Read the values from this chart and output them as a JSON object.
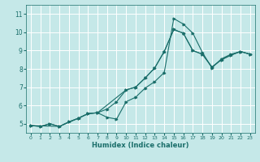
{
  "xlabel": "Humidex (Indice chaleur)",
  "background_color": "#c5e8e8",
  "grid_color": "#ffffff",
  "line_color": "#1a6e6a",
  "xlim": [
    -0.5,
    23.5
  ],
  "ylim": [
    4.5,
    11.5
  ],
  "xticks": [
    0,
    1,
    2,
    3,
    4,
    5,
    6,
    7,
    8,
    9,
    10,
    11,
    12,
    13,
    14,
    15,
    16,
    17,
    18,
    19,
    20,
    21,
    22,
    23
  ],
  "yticks": [
    5,
    6,
    7,
    8,
    9,
    10,
    11
  ],
  "line_zigzag_x": [
    0,
    1,
    2,
    3,
    4,
    5,
    6,
    7,
    8,
    9,
    10,
    11,
    12,
    13,
    14,
    15,
    16,
    17,
    18,
    19,
    20,
    21,
    22,
    23
  ],
  "line_zigzag_y": [
    4.9,
    4.85,
    5.0,
    4.85,
    5.1,
    5.3,
    5.55,
    5.6,
    5.35,
    5.25,
    6.2,
    6.45,
    6.95,
    7.3,
    7.8,
    10.75,
    10.45,
    9.95,
    8.9,
    8.05,
    8.55,
    8.8,
    8.95,
    8.8
  ],
  "line_upper_x": [
    0,
    1,
    2,
    3,
    4,
    5,
    6,
    7,
    8,
    9,
    10,
    11,
    12,
    13,
    14,
    15,
    16,
    17,
    18,
    19,
    20,
    21,
    22,
    23
  ],
  "line_upper_y": [
    4.9,
    4.85,
    5.0,
    4.85,
    5.1,
    5.3,
    5.55,
    5.6,
    5.8,
    6.2,
    6.85,
    7.0,
    7.5,
    8.05,
    8.95,
    10.15,
    9.95,
    9.0,
    8.8,
    8.1,
    8.5,
    8.75,
    8.95,
    8.8
  ],
  "line_lower_x": [
    0,
    3,
    5,
    6,
    7,
    10,
    11,
    12,
    13,
    14,
    15,
    16,
    17,
    18,
    19,
    20,
    21,
    22,
    23
  ],
  "line_lower_y": [
    4.9,
    4.85,
    5.3,
    5.55,
    5.6,
    6.85,
    7.0,
    7.5,
    8.05,
    8.95,
    10.15,
    9.95,
    9.0,
    8.8,
    8.1,
    8.5,
    8.75,
    8.95,
    8.8
  ]
}
